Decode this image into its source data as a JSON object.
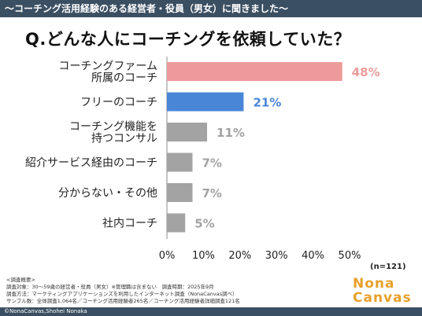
{
  "header": {
    "banner": "〜コーチング活用経験のある経営者・役員（男女）に聞きました〜",
    "question": "Q.どんな人にコーチングを依頼していた？"
  },
  "chart_data": {
    "type": "bar",
    "orientation": "horizontal",
    "categories": [
      [
        "コーチングファーム",
        "所属のコーチ"
      ],
      [
        "フリーのコーチ"
      ],
      [
        "コーチング機能を",
        "持つコンサル"
      ],
      [
        "紹介サービス経由のコーチ"
      ],
      [
        "分からない・その他"
      ],
      [
        "社内コーチ"
      ]
    ],
    "values": [
      48,
      21,
      11,
      7,
      7,
      5
    ],
    "value_labels": [
      "48%",
      "21%",
      "11%",
      "7%",
      "7%",
      "5%"
    ],
    "bar_colors": [
      "#ee9a9a",
      "#4a86d8",
      "#a3a3a3",
      "#a3a3a3",
      "#a3a3a3",
      "#a3a3a3"
    ],
    "label_colors": [
      "#ee9a9a",
      "#4a86d8",
      "#a3a3a3",
      "#a3a3a3",
      "#a3a3a3",
      "#a3a3a3"
    ],
    "xlim": [
      0,
      50
    ],
    "xticks": [
      0,
      10,
      20,
      30,
      40,
      50
    ],
    "xtick_labels": [
      "0%",
      "10%",
      "20%",
      "30%",
      "40%",
      "50%"
    ],
    "grid": false
  },
  "n_note": "(n=121)",
  "survey": {
    "heading": "<調査概要>",
    "line1": "調査対象：30〜59歳の経営者・役員（男女）※管理職は含まない　調査時期：2025年9月",
    "line2": "調査方法：マーケティングアプリケーションズを利用したインターネット調査（NonaCanvas調べ）",
    "line3": "サンプル数：全体調査1,064名／コーチング活用経験者265名／コーチング活用経験者詳細調査121名"
  },
  "logo": {
    "line1": "Nona",
    "line2": "Canvas",
    "color": "#e8a02a"
  },
  "footer": {
    "copyright": "©NonaCanvas,Shohei Nonaka"
  }
}
